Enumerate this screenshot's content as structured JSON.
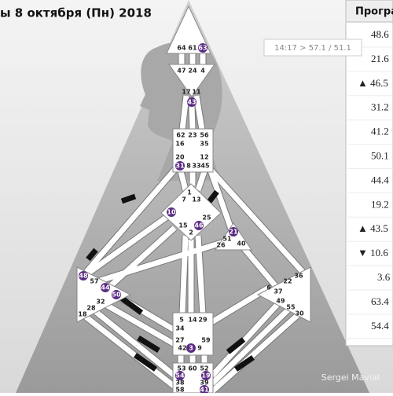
{
  "header": {
    "title": "ы 8 октября (Пн) 2018"
  },
  "tooltip": "14:17 > 57.1 / 51.1",
  "panel": {
    "header": "Програ",
    "rows": [
      "48.6",
      "21.6",
      "▲ 46.5",
      "31.2",
      "41.2",
      "50.1",
      "44.4",
      "19.2",
      "▲ 43.5",
      "▼ 10.6",
      "3.6",
      "63.4",
      "54.4"
    ]
  },
  "credit": "Sergei Maviat",
  "gates": {
    "head": [
      "64",
      "61",
      "63"
    ],
    "ajna": [
      "47",
      "24",
      "4",
      "17",
      "11",
      "43"
    ],
    "throat": [
      "62",
      "23",
      "56",
      "16",
      "35",
      "20",
      "12",
      "31",
      "8",
      "33",
      "45"
    ],
    "g": [
      "1",
      "7",
      "13",
      "10",
      "25",
      "15",
      "46",
      "2"
    ],
    "heart": [
      "21",
      "51",
      "26",
      "40"
    ],
    "spleen": [
      "48",
      "57",
      "44",
      "50",
      "32",
      "28",
      "18"
    ],
    "sacral": [
      "5",
      "14",
      "29",
      "34",
      "27",
      "59",
      "42",
      "3",
      "9"
    ],
    "root": [
      "53",
      "60",
      "52",
      "54",
      "19",
      "38",
      "39",
      "58",
      "41"
    ],
    "solar": [
      "36",
      "22",
      "6",
      "37",
      "49",
      "55",
      "30"
    ]
  }
}
